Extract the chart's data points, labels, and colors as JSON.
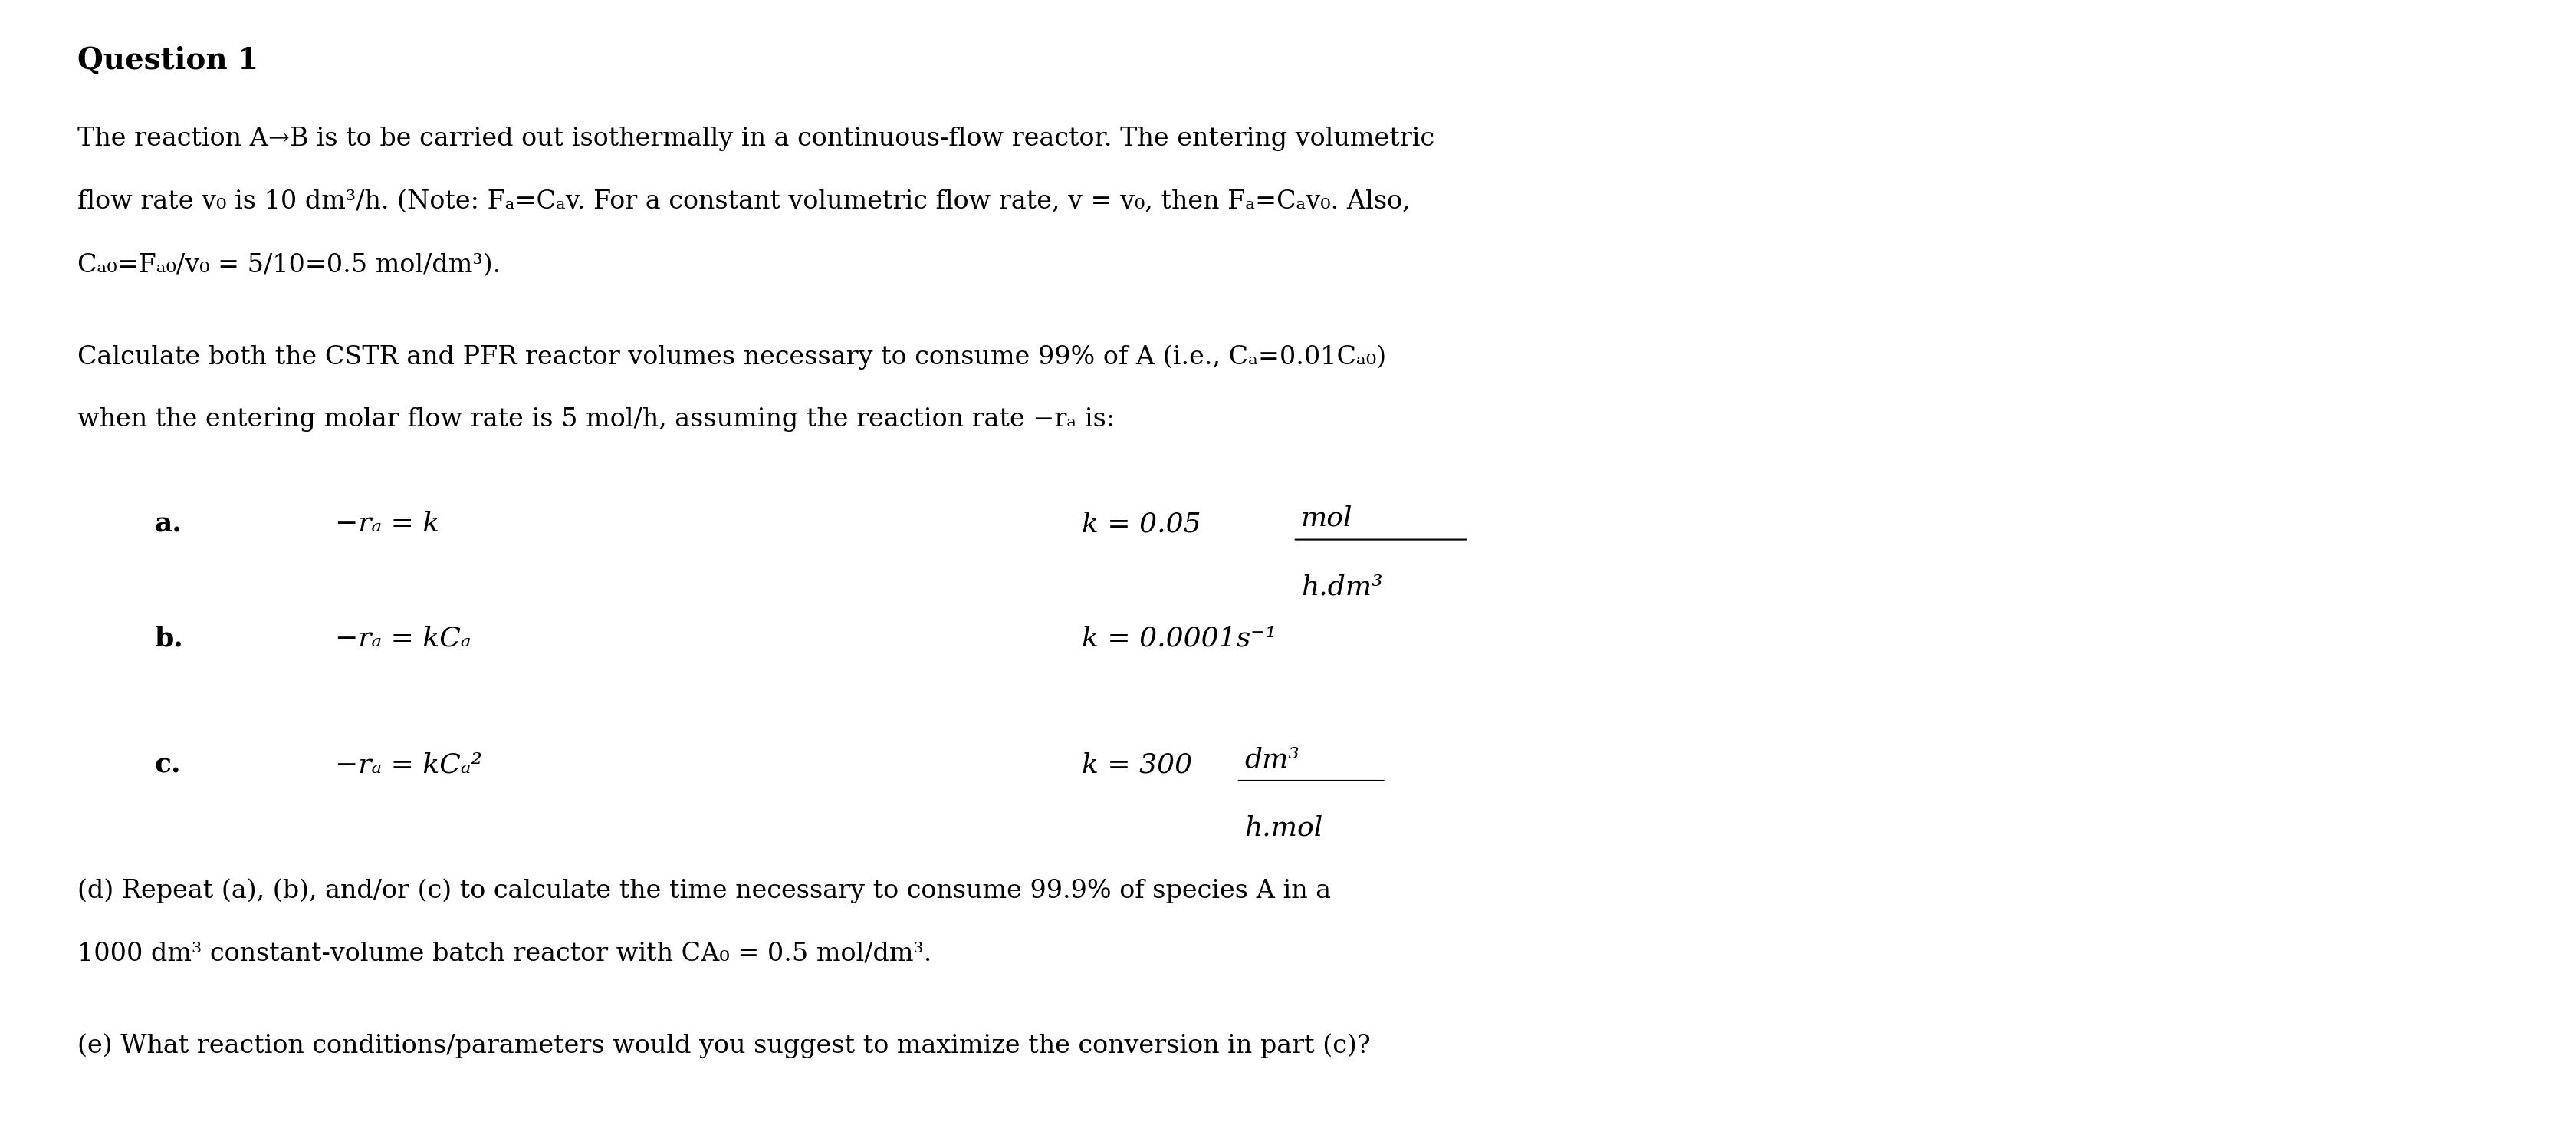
{
  "background_color": "#ffffff",
  "title": "Question 1",
  "body_lines": [
    "The reaction A→B is to be carried out isothermally in a continuous-flow reactor. The entering volumetric",
    "flow rate v₀ is 10 dm³/h. (Note: Fₐ=Cₐv. For a constant volumetric flow rate, v = v₀, then Fₐ=Cₐv₀. Also,",
    "Cₐ₀=Fₐ₀/v₀ = 5/10=0.5 mol/dm³)."
  ],
  "para2_lines": [
    "Calculate both the CSTR and PFR reactor volumes necessary to consume 99% of A (i.e., Cₐ=0.01Cₐ₀)",
    "when the entering molar flow rate is 5 mol/h, assuming the reaction rate −rₐ is:"
  ],
  "items": [
    {
      "label": "a.",
      "eq": "−rₐ = k",
      "k_text": "k = 0.05",
      "k_unit_num": "mol",
      "k_unit_den": "h.dm³"
    },
    {
      "label": "b.",
      "eq": "−rₐ = kCₐ",
      "k_text": "k = 0.0001s⁻¹",
      "k_unit_num": "",
      "k_unit_den": ""
    },
    {
      "label": "c.",
      "eq": "−rₐ = kCₐ²",
      "k_text": "k = 300",
      "k_unit_num": "dm³",
      "k_unit_den": "h.mol"
    }
  ],
  "para_d": "(d) Repeat (a), (b), and/or (c) to calculate the time necessary to consume 99.9% of species A in a",
  "para_d2": "1000 dm³ constant-volume batch reactor with CA₀ = 0.5 mol/dm³.",
  "para_e": "(e) What reaction conditions/parameters would you suggest to maximize the conversion in part (c)?"
}
